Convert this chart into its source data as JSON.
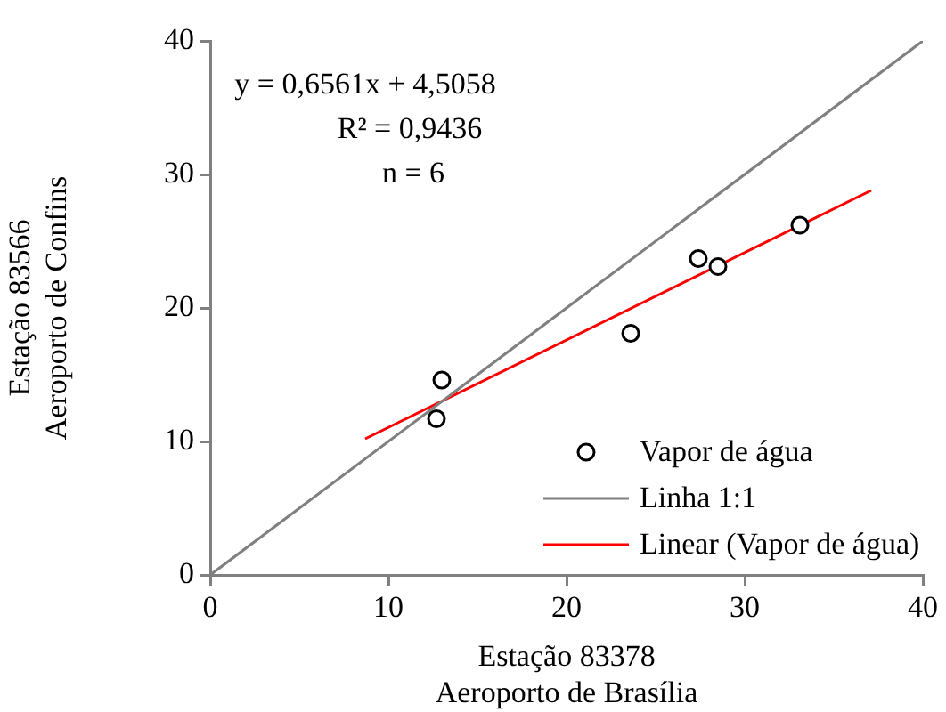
{
  "chart_data": {
    "type": "scatter",
    "xlabel": "Estação 83378\nAeroporto de Brasília",
    "ylabel": "Estação 83566\nAeroporto de Confins",
    "annotations": [
      "y = 0,6561x + 4,5058",
      "R² = 0,9436",
      "n = 6"
    ],
    "series": [
      {
        "name": "Vapor de água",
        "marker": "circle",
        "color": "#000000",
        "x": [
          13.0,
          12.7,
          23.6,
          27.4,
          28.5,
          33.1
        ],
        "values": [
          14.6,
          11.7,
          18.1,
          23.7,
          23.1,
          26.2
        ]
      },
      {
        "name": "Linha 1:1",
        "type": "line",
        "marker": "none",
        "color": "#808080",
        "x": [
          0,
          40
        ],
        "values": [
          0,
          40
        ]
      },
      {
        "name": "Linear (Vapor de água)",
        "type": "line",
        "marker": "none",
        "color": "#ff0000",
        "x": [
          8.7,
          37.1
        ],
        "values": [
          10.2,
          28.8
        ]
      }
    ],
    "xlim": [
      0,
      40
    ],
    "xticks": [
      0,
      10,
      20,
      30,
      40
    ],
    "ylim": [
      0,
      40
    ],
    "yticks": [
      0,
      10,
      20,
      30,
      40
    ],
    "grid": false,
    "legend": "bottom right"
  }
}
